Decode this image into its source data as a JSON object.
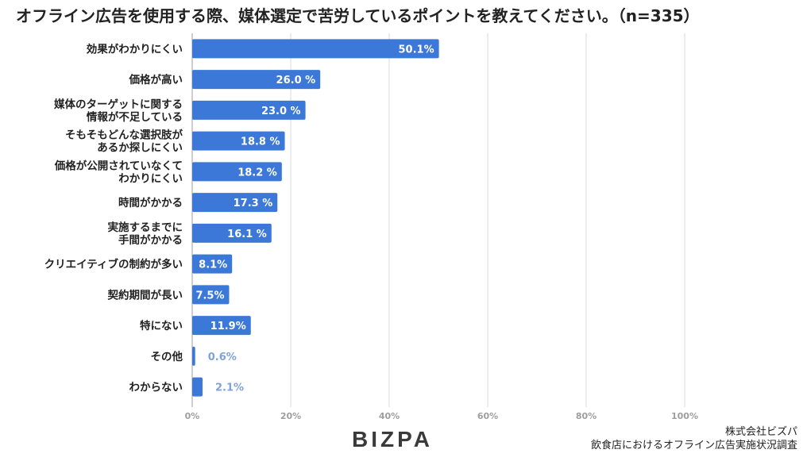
{
  "header": {
    "title": "オフライン広告を使用する際、媒体選定で苦労しているポイントを教えてください。（n=335）"
  },
  "chart_data": {
    "type": "bar",
    "orientation": "horizontal",
    "title": "オフライン広告を使用する際、媒体選定で苦労しているポイントを教えてください。（n=335）",
    "categories": [
      [
        "効果がわかりにくい"
      ],
      [
        "価格が高い"
      ],
      [
        "媒体のターゲットに関する",
        "情報が不足している"
      ],
      [
        "そもそもどんな選択肢が",
        "あるか探しにくい"
      ],
      [
        "価格が公開されていなくて",
        "わかりにくい"
      ],
      [
        "時間がかかる"
      ],
      [
        "実施するまでに",
        "手間がかかる"
      ],
      [
        "クリエイティブの制約が多い"
      ],
      [
        "契約期間が長い"
      ],
      [
        "特にない"
      ],
      [
        "その他"
      ],
      [
        "わからない"
      ]
    ],
    "values": [
      50.1,
      26.0,
      23.0,
      18.8,
      18.2,
      17.3,
      16.1,
      8.1,
      7.5,
      11.9,
      0.6,
      2.1
    ],
    "value_labels": [
      "50.1%",
      "26.0 %",
      "23.0 %",
      "18.8 %",
      "18.2 %",
      "17.3 %",
      "16.1 %",
      "8.1%",
      "7.5%",
      "11.9%",
      "0.6%",
      "2.1%"
    ],
    "xlim": [
      0,
      100
    ],
    "x_ticks": [
      "0%",
      "20%",
      "40%",
      "60%",
      "80%",
      "100%"
    ],
    "x_tick_values": [
      0,
      20,
      40,
      60,
      80,
      100
    ],
    "grid": true,
    "bar_color": "#3c78d8",
    "label_inside_color": "#ffffff",
    "label_outside_color": "#7fa3d8"
  },
  "footer": {
    "logo": "BIZPA",
    "credit_line1": "株式会社ビズパ",
    "credit_line2": "飲食店におけるオフライン広告実施状況調査"
  }
}
